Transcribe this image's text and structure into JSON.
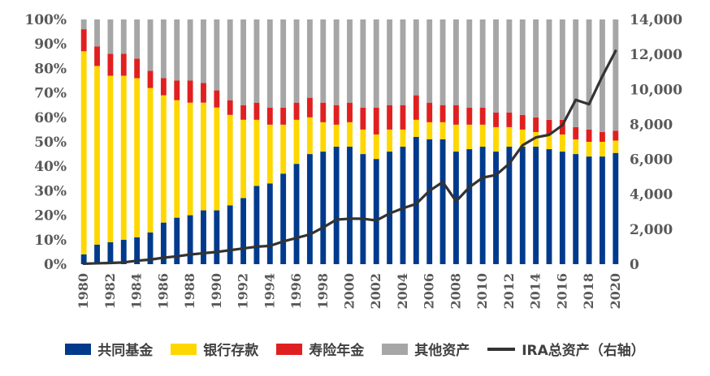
{
  "chart_data": {
    "type": "bar",
    "subtype": "stacked-percent-with-line",
    "title": "",
    "xlabel": "",
    "ylabel": "",
    "y2label": "",
    "ylim": [
      0,
      100
    ],
    "y2lim": [
      0,
      14000
    ],
    "y_ticks": [
      "0%",
      "10%",
      "20%",
      "30%",
      "40%",
      "50%",
      "60%",
      "70%",
      "80%",
      "90%",
      "100%"
    ],
    "y2_ticks": [
      "0",
      "2,000",
      "4,000",
      "6,000",
      "8,000",
      "10,000",
      "12,000",
      "14,000"
    ],
    "categories": [
      1980,
      1981,
      1982,
      1983,
      1984,
      1985,
      1986,
      1987,
      1988,
      1989,
      1990,
      1991,
      1992,
      1993,
      1994,
      1995,
      1996,
      1997,
      1998,
      1999,
      2000,
      2001,
      2002,
      2003,
      2004,
      2005,
      2006,
      2007,
      2008,
      2009,
      2010,
      2011,
      2012,
      2013,
      2014,
      2015,
      2016,
      2017,
      2018,
      2019,
      2020
    ],
    "x_tick_labels": [
      "1980",
      "1982",
      "1984",
      "1986",
      "1988",
      "1990",
      "1992",
      "1994",
      "1996",
      "1998",
      "2000",
      "2002",
      "2004",
      "2006",
      "2008",
      "2010",
      "2012",
      "2014",
      "2016",
      "2018",
      "2020"
    ],
    "series": [
      {
        "name": "共同基金",
        "color": "#003a8c",
        "axis": "left",
        "values": [
          4,
          8,
          9,
          10,
          11,
          13,
          17,
          19,
          20,
          22,
          22,
          24,
          27,
          32,
          33,
          37,
          41,
          45,
          46,
          48,
          48,
          45,
          43,
          46,
          48,
          52,
          51,
          51,
          46,
          47,
          48,
          46,
          48,
          48,
          48,
          47,
          46,
          45,
          44,
          44,
          45
        ]
      },
      {
        "name": "银行存款",
        "color": "#ffd700",
        "axis": "left",
        "values": [
          83,
          73,
          68,
          67,
          65,
          59,
          52,
          48,
          46,
          44,
          42,
          37,
          32,
          27,
          24,
          20,
          18,
          15,
          12,
          9,
          10,
          10,
          10,
          9,
          7,
          7,
          7,
          7,
          11,
          10,
          9,
          10,
          8,
          7,
          6,
          6,
          7,
          6,
          6,
          6,
          5
        ]
      },
      {
        "name": "寿险年金",
        "color": "#e02020",
        "axis": "left",
        "values": [
          9,
          8,
          9,
          9,
          8,
          7,
          7,
          8,
          9,
          8,
          7,
          6,
          6,
          7,
          7,
          7,
          7,
          8,
          8,
          8,
          8,
          9,
          11,
          10,
          10,
          10,
          8,
          7,
          8,
          7,
          7,
          6,
          6,
          6,
          6,
          6,
          6,
          5,
          5,
          4,
          4
        ]
      },
      {
        "name": "其他资产",
        "color": "#a6a6a6",
        "axis": "left",
        "values": [
          4,
          11,
          14,
          14,
          16,
          21,
          24,
          25,
          25,
          26,
          29,
          33,
          35,
          34,
          36,
          36,
          34,
          32,
          34,
          35,
          34,
          36,
          36,
          35,
          35,
          31,
          34,
          35,
          35,
          36,
          36,
          38,
          38,
          39,
          40,
          41,
          41,
          44,
          45,
          46,
          45
        ]
      },
      {
        "name": "IRA总资产（右轴）",
        "color": "#333333",
        "axis": "right",
        "type": "line",
        "values": [
          25,
          50,
          70,
          100,
          200,
          260,
          370,
          450,
          550,
          630,
          700,
          800,
          900,
          1000,
          1050,
          1300,
          1500,
          1700,
          2100,
          2550,
          2600,
          2600,
          2500,
          2900,
          3200,
          3450,
          4200,
          4700,
          3600,
          4400,
          4950,
          5100,
          5750,
          6800,
          7250,
          7400,
          7950,
          9400,
          9150,
          10750,
          12200
        ]
      }
    ],
    "legend": [
      "共同基金",
      "银行存款",
      "寿险年金",
      "其他资产",
      "IRA总资产（右轴）"
    ],
    "legend_position": "bottom",
    "grid": false
  },
  "colors": {
    "mutual_funds": "#003a8c",
    "bank_deposits": "#ffd700",
    "life_insurance": "#e02020",
    "other_assets": "#a6a6a6",
    "ira_total_line": "#333333"
  }
}
